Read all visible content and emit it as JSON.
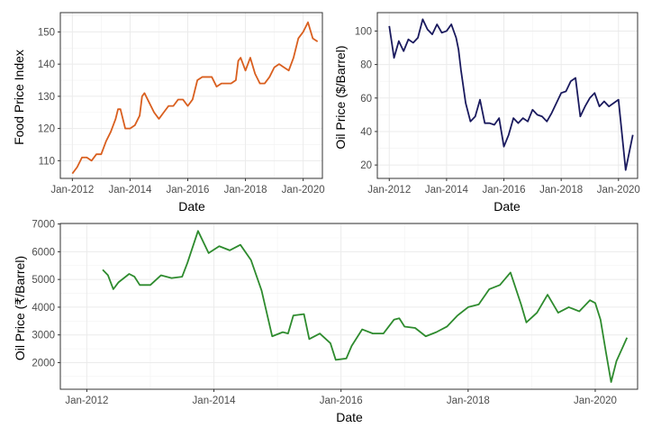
{
  "chart_data": [
    {
      "type": "line",
      "xlabel": "Date",
      "ylabel": "Food Price Index",
      "x_ticks": [
        "Jan-2012",
        "Jan-2014",
        "Jan-2016",
        "Jan-2018",
        "Jan-2020"
      ],
      "y_ticks": [
        110,
        120,
        130,
        140,
        150
      ],
      "xlim": [
        "2011-08",
        "2020-09"
      ],
      "ylim": [
        104.5,
        156
      ],
      "grid": true,
      "color": "#d95f1f",
      "series": [
        {
          "x": [
            "2012-01",
            "2012-03",
            "2012-05",
            "2012-07",
            "2012-09",
            "2012-11",
            "2013-01",
            "2013-03",
            "2013-05",
            "2013-07",
            "2013-08",
            "2013-09",
            "2013-11",
            "2014-01",
            "2014-03",
            "2014-05",
            "2014-06",
            "2014-07",
            "2014-09",
            "2014-11",
            "2015-01",
            "2015-03",
            "2015-05",
            "2015-07",
            "2015-09",
            "2015-11",
            "2016-01",
            "2016-03",
            "2016-05",
            "2016-07",
            "2016-09",
            "2016-11",
            "2017-01",
            "2017-03",
            "2017-05",
            "2017-07",
            "2017-09",
            "2017-10",
            "2017-11",
            "2018-01",
            "2018-03",
            "2018-05",
            "2018-07",
            "2018-09",
            "2018-11",
            "2019-01",
            "2019-03",
            "2019-05",
            "2019-07",
            "2019-09",
            "2019-10",
            "2019-11",
            "2020-01",
            "2020-03",
            "2020-05",
            "2020-07"
          ],
          "y": [
            106,
            108,
            111,
            111,
            110,
            112,
            112,
            116,
            119,
            123,
            126,
            126,
            120,
            120,
            121,
            124,
            130,
            131,
            128,
            125,
            123,
            125,
            127,
            127,
            129,
            129,
            127,
            129,
            135,
            136,
            136,
            136,
            133,
            134,
            134,
            134,
            135,
            141,
            142,
            138,
            142,
            137,
            134,
            134,
            136,
            139,
            140,
            139,
            138,
            142,
            145,
            148,
            150,
            153,
            148,
            147
          ]
        }
      ]
    },
    {
      "type": "line",
      "xlabel": "Date",
      "ylabel": "Oil Price ($/Barrel)",
      "x_ticks": [
        "Jan-2012",
        "Jan-2014",
        "Jan-2016",
        "Jan-2018",
        "Jan-2020"
      ],
      "y_ticks": [
        20,
        40,
        60,
        80,
        100
      ],
      "xlim": [
        "2011-08",
        "2020-09"
      ],
      "ylim": [
        12,
        111
      ],
      "grid": true,
      "color": "#1a1a5e",
      "series": [
        {
          "x": [
            "2012-01",
            "2012-03",
            "2012-05",
            "2012-07",
            "2012-09",
            "2012-11",
            "2013-01",
            "2013-03",
            "2013-05",
            "2013-07",
            "2013-09",
            "2013-11",
            "2014-01",
            "2014-03",
            "2014-05",
            "2014-06",
            "2014-07",
            "2014-09",
            "2014-11",
            "2015-01",
            "2015-03",
            "2015-05",
            "2015-07",
            "2015-09",
            "2015-11",
            "2016-01",
            "2016-03",
            "2016-05",
            "2016-07",
            "2016-09",
            "2016-11",
            "2017-01",
            "2017-03",
            "2017-05",
            "2017-07",
            "2017-09",
            "2017-11",
            "2018-01",
            "2018-03",
            "2018-05",
            "2018-07",
            "2018-09",
            "2018-11",
            "2019-01",
            "2019-03",
            "2019-05",
            "2019-07",
            "2019-09",
            "2019-11",
            "2020-01",
            "2020-03",
            "2020-04",
            "2020-05",
            "2020-07"
          ],
          "y": [
            103,
            84,
            94,
            88,
            95,
            93,
            96,
            107,
            101,
            98,
            104,
            99,
            100,
            104,
            96,
            89,
            77,
            57,
            46,
            49,
            59,
            45,
            45,
            44,
            48,
            31,
            38,
            48,
            45,
            48,
            46,
            53,
            50,
            49,
            46,
            51,
            57,
            63,
            64,
            70,
            72,
            49,
            55,
            60,
            63,
            55,
            58,
            55,
            57,
            59,
            31,
            17,
            24,
            38
          ]
        }
      ]
    },
    {
      "type": "line",
      "xlabel": "Date",
      "ylabel": "Oil Price (₹/Barrel)",
      "x_ticks": [
        "Jan-2012",
        "Jan-2014",
        "Jan-2016",
        "Jan-2018",
        "Jan-2020"
      ],
      "y_ticks": [
        2000,
        3000,
        4000,
        5000,
        6000,
        7000
      ],
      "xlim": [
        "2011-08",
        "2020-09"
      ],
      "ylim": [
        1040,
        7020
      ],
      "grid": true,
      "color": "#2e8b2e",
      "series": [
        {
          "x": [
            "2012-04",
            "2012-05",
            "2012-06",
            "2012-07",
            "2012-09",
            "2012-10",
            "2012-11",
            "2013-01",
            "2013-03",
            "2013-05",
            "2013-07",
            "2013-08",
            "2013-10",
            "2013-12",
            "2014-02",
            "2014-04",
            "2014-06",
            "2014-08",
            "2014-10",
            "2014-12",
            "2015-02",
            "2015-03",
            "2015-04",
            "2015-06",
            "2015-07",
            "2015-09",
            "2015-11",
            "2015-12",
            "2016-02",
            "2016-03",
            "2016-05",
            "2016-07",
            "2016-09",
            "2016-11",
            "2016-12",
            "2017-01",
            "2017-03",
            "2017-05",
            "2017-07",
            "2017-09",
            "2017-11",
            "2018-01",
            "2018-03",
            "2018-05",
            "2018-07",
            "2018-09",
            "2018-11",
            "2018-12",
            "2019-02",
            "2019-04",
            "2019-06",
            "2019-08",
            "2019-10",
            "2019-12",
            "2020-01",
            "2020-02",
            "2020-03",
            "2020-04",
            "2020-05",
            "2020-07"
          ],
          "y": [
            5350,
            5150,
            4650,
            4900,
            5200,
            5100,
            4800,
            4800,
            5150,
            5050,
            5100,
            5600,
            6750,
            5950,
            6200,
            6050,
            6250,
            5700,
            4600,
            2950,
            3100,
            3050,
            3700,
            3750,
            2850,
            3050,
            2700,
            2100,
            2150,
            2600,
            3200,
            3050,
            3050,
            3550,
            3600,
            3300,
            3250,
            2950,
            3100,
            3300,
            3700,
            4000,
            4100,
            4650,
            4800,
            5250,
            4100,
            3450,
            3800,
            4450,
            3800,
            4000,
            3850,
            4250,
            4150,
            3550,
            2400,
            1300,
            2050,
            2900
          ]
        }
      ]
    }
  ]
}
